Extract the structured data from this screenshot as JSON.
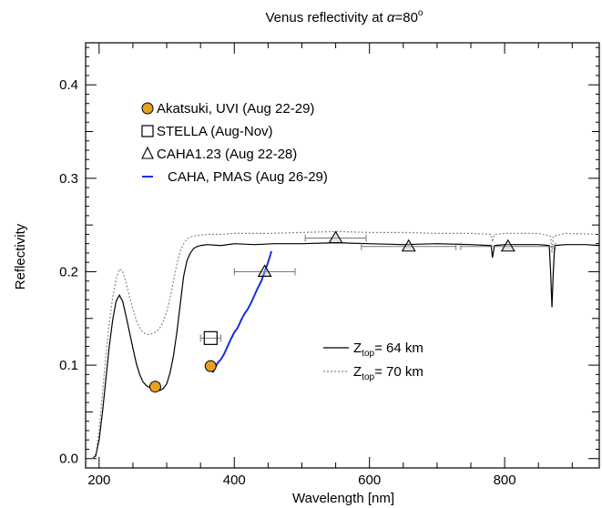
{
  "chart_data": {
    "type": "line",
    "title": "Venus reflectivity at α=80°",
    "title_parts": {
      "prefix": "Venus reflectivity at ",
      "symbol": "α",
      "value": "=80",
      "degree": "o"
    },
    "xlabel": "Wavelength [nm]",
    "ylabel": "Reflectivity",
    "xlim": [
      180,
      940
    ],
    "ylim": [
      -0.01,
      0.445
    ],
    "xticks": [
      200,
      400,
      600,
      800
    ],
    "xtick_labels": [
      "200",
      "400",
      "600",
      "800"
    ],
    "yticks": [
      0.0,
      0.1,
      0.2,
      0.3,
      0.4
    ],
    "ytick_labels": [
      "0.0",
      "0.1",
      "0.2",
      "0.3",
      "0.4"
    ],
    "grid": false,
    "legend_top": {
      "placement": "top-left",
      "entries": [
        {
          "marker": "filled-circle",
          "color": "#e8a020",
          "label": "Akatsuki, UVI (Aug 22-29)"
        },
        {
          "marker": "open-square",
          "color": "#000000",
          "label": "STELLA (Aug-Nov)"
        },
        {
          "marker": "open-triangle",
          "color": "#000000",
          "label": "CAHA1.23 (Aug 22-28)"
        },
        {
          "marker": "line",
          "color": "#1a2ee0",
          "label": "CAHA, PMAS (Aug 26-29)"
        }
      ]
    },
    "legend_bottom": {
      "placement": "bottom-right",
      "entries": [
        {
          "style": "solid",
          "color": "#000000",
          "label_main": "Z",
          "label_sub": "top",
          "label_rest": "= 64 km"
        },
        {
          "style": "dotted",
          "color": "#888888",
          "label_main": "Z",
          "label_sub": "top",
          "label_rest": "= 70 km"
        }
      ]
    },
    "series": [
      {
        "name": "Z_top = 64 km",
        "style": "solid",
        "color": "#000000",
        "x": [
          190,
          195,
          200,
          205,
          210,
          215,
          220,
          225,
          230,
          235,
          240,
          245,
          250,
          255,
          260,
          265,
          270,
          275,
          280,
          285,
          290,
          295,
          300,
          305,
          310,
          315,
          320,
          325,
          330,
          335,
          340,
          345,
          350,
          360,
          380,
          400,
          430,
          460,
          500,
          550,
          600,
          650,
          700,
          750,
          780,
          782,
          785,
          800,
          850,
          866,
          868,
          870,
          872,
          874,
          890,
          920,
          940
        ],
        "y": [
          0.0,
          0.003,
          0.02,
          0.05,
          0.085,
          0.12,
          0.148,
          0.168,
          0.175,
          0.168,
          0.152,
          0.135,
          0.118,
          0.102,
          0.09,
          0.082,
          0.078,
          0.076,
          0.075,
          0.074,
          0.073,
          0.075,
          0.08,
          0.092,
          0.11,
          0.135,
          0.165,
          0.195,
          0.212,
          0.22,
          0.225,
          0.227,
          0.228,
          0.229,
          0.228,
          0.23,
          0.229,
          0.23,
          0.23,
          0.231,
          0.23,
          0.229,
          0.23,
          0.229,
          0.228,
          0.215,
          0.228,
          0.229,
          0.229,
          0.228,
          0.2,
          0.162,
          0.2,
          0.228,
          0.229,
          0.229,
          0.228
        ]
      },
      {
        "name": "Z_top = 70 km",
        "style": "dotted",
        "color": "#888888",
        "x": [
          190,
          195,
          200,
          205,
          210,
          215,
          220,
          225,
          230,
          235,
          240,
          245,
          250,
          255,
          260,
          265,
          270,
          275,
          280,
          285,
          290,
          295,
          300,
          305,
          310,
          315,
          320,
          325,
          330,
          335,
          340,
          345,
          350,
          360,
          380,
          400,
          450,
          500,
          550,
          600,
          650,
          700,
          750,
          780,
          782,
          785,
          800,
          850,
          868,
          870,
          872,
          890,
          940
        ],
        "y": [
          0.0,
          0.005,
          0.03,
          0.07,
          0.11,
          0.145,
          0.172,
          0.192,
          0.203,
          0.2,
          0.188,
          0.173,
          0.16,
          0.148,
          0.14,
          0.135,
          0.133,
          0.133,
          0.134,
          0.136,
          0.14,
          0.147,
          0.157,
          0.172,
          0.19,
          0.208,
          0.222,
          0.23,
          0.235,
          0.237,
          0.238,
          0.239,
          0.239,
          0.24,
          0.24,
          0.241,
          0.241,
          0.242,
          0.243,
          0.242,
          0.242,
          0.241,
          0.241,
          0.24,
          0.232,
          0.24,
          0.241,
          0.241,
          0.238,
          0.22,
          0.238,
          0.241,
          0.24
        ]
      },
      {
        "name": "CAHA, PMAS (Aug 26-29)",
        "style": "solid",
        "color": "#1a2ee0",
        "x": [
          368,
          372,
          376,
          380,
          385,
          390,
          395,
          400,
          405,
          410,
          415,
          420,
          425,
          430,
          435,
          440,
          445,
          450,
          455
        ],
        "y": [
          0.092,
          0.098,
          0.103,
          0.106,
          0.112,
          0.12,
          0.128,
          0.135,
          0.14,
          0.148,
          0.155,
          0.16,
          0.167,
          0.175,
          0.183,
          0.19,
          0.2,
          0.21,
          0.222
        ]
      }
    ],
    "markers": [
      {
        "name": "Akatsuki, UVI (Aug 22-29)",
        "marker": "filled-circle",
        "color": "#e8a020",
        "points": [
          {
            "x": 283,
            "y": 0.077
          },
          {
            "x": 365,
            "y": 0.099
          }
        ]
      },
      {
        "name": "STELLA (Aug-Nov)",
        "marker": "open-square",
        "points": [
          {
            "x": 365,
            "y": 0.129,
            "xerr": 15
          }
        ]
      },
      {
        "name": "CAHA1.23 (Aug 22-28)",
        "marker": "open-triangle",
        "points": [
          {
            "x": 445,
            "y": 0.2,
            "xerr": 45
          },
          {
            "x": 550,
            "y": 0.236,
            "xerr": 45
          },
          {
            "x": 658,
            "y": 0.227,
            "xerr": 70
          },
          {
            "x": 805,
            "y": 0.227,
            "xerr": 70
          }
        ]
      }
    ]
  }
}
